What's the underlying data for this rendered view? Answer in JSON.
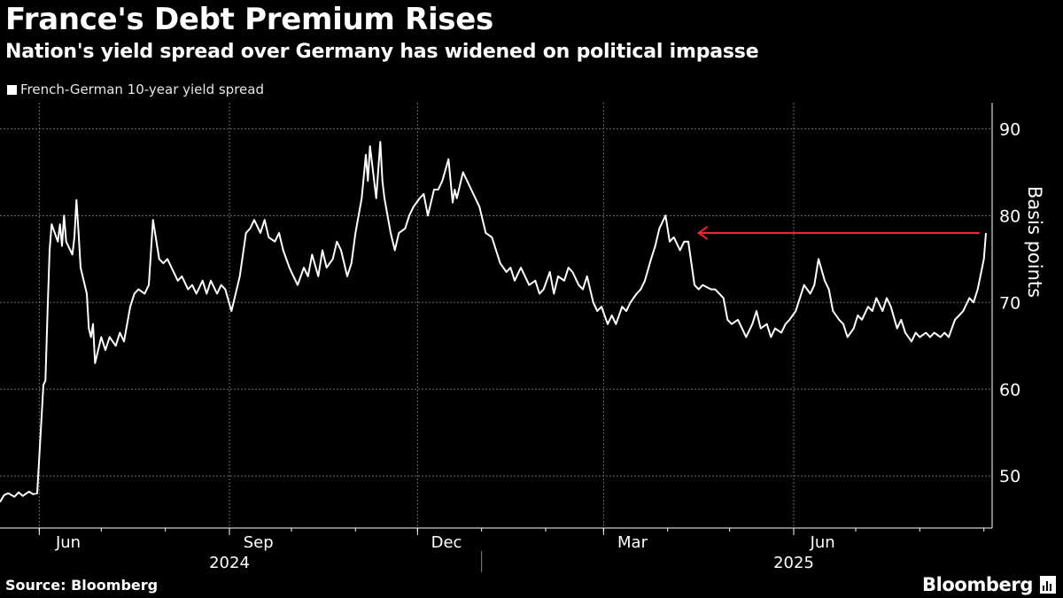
{
  "header": {
    "title": "France's Debt Premium Rises",
    "subtitle": "Nation's yield spread over Germany has widened on political impasse"
  },
  "footer": {
    "source": "Source: Bloomberg",
    "brand": "Bloomberg"
  },
  "colors": {
    "background": "#000000",
    "line": "#ffffff",
    "annotation_arrow": "#e8283c",
    "grid": "#6b6b6b"
  },
  "chart_data": {
    "type": "line",
    "title": "France's Debt Premium Rises",
    "subtitle": "Nation's yield spread over Germany has widened on political impasse",
    "ylabel": "Basis points",
    "ylim": [
      44,
      93
    ],
    "yticks": [
      50,
      60,
      70,
      80,
      90
    ],
    "xlim": [
      "2024-05-13",
      "2025-09-05"
    ],
    "xticks": [
      {
        "date": "2024-06-01",
        "label": "Jun"
      },
      {
        "date": "2024-09-01",
        "label": "Sep"
      },
      {
        "date": "2024-12-01",
        "label": "Dec"
      },
      {
        "date": "2025-03-01",
        "label": "Mar"
      },
      {
        "date": "2025-06-01",
        "label": "Jun"
      }
    ],
    "year_labels": [
      {
        "date": "2024-09-01",
        "label": "2024"
      },
      {
        "date": "2025-06-01",
        "label": "2025"
      }
    ],
    "year_divider": "2025-01-01",
    "grid": true,
    "legend": "top-left",
    "series": [
      {
        "name": "French-German 10-year yield spread",
        "points": [
          [
            "2024-05-13",
            47.0
          ],
          [
            "2024-05-15",
            47.8
          ],
          [
            "2024-05-17",
            48.0
          ],
          [
            "2024-05-20",
            47.6
          ],
          [
            "2024-05-22",
            48.1
          ],
          [
            "2024-05-24",
            47.7
          ],
          [
            "2024-05-27",
            48.2
          ],
          [
            "2024-05-29",
            47.9
          ],
          [
            "2024-05-31",
            48.0
          ],
          [
            "2024-06-03",
            60.5
          ],
          [
            "2024-06-04",
            61.0
          ],
          [
            "2024-06-05",
            69.0
          ],
          [
            "2024-06-06",
            76.0
          ],
          [
            "2024-06-07",
            79.0
          ],
          [
            "2024-06-10",
            77.0
          ],
          [
            "2024-06-11",
            79.0
          ],
          [
            "2024-06-12",
            76.5
          ],
          [
            "2024-06-13",
            80.0
          ],
          [
            "2024-06-14",
            77.0
          ],
          [
            "2024-06-17",
            75.5
          ],
          [
            "2024-06-18",
            77.5
          ],
          [
            "2024-06-19",
            81.8
          ],
          [
            "2024-06-20",
            78.0
          ],
          [
            "2024-06-21",
            74.0
          ],
          [
            "2024-06-24",
            71.0
          ],
          [
            "2024-06-25",
            67.0
          ],
          [
            "2024-06-26",
            66.0
          ],
          [
            "2024-06-27",
            67.5
          ],
          [
            "2024-06-28",
            63.0
          ],
          [
            "2024-07-01",
            66.0
          ],
          [
            "2024-07-03",
            64.5
          ],
          [
            "2024-07-05",
            66.0
          ],
          [
            "2024-07-08",
            65.0
          ],
          [
            "2024-07-10",
            66.5
          ],
          [
            "2024-07-12",
            65.5
          ],
          [
            "2024-07-15",
            69.5
          ],
          [
            "2024-07-17",
            71.0
          ],
          [
            "2024-07-19",
            71.5
          ],
          [
            "2024-07-22",
            71.0
          ],
          [
            "2024-07-24",
            72.0
          ],
          [
            "2024-07-26",
            79.5
          ],
          [
            "2024-07-29",
            75.0
          ],
          [
            "2024-07-31",
            74.5
          ],
          [
            "2024-08-02",
            75.0
          ],
          [
            "2024-08-05",
            73.5
          ],
          [
            "2024-08-07",
            72.5
          ],
          [
            "2024-08-09",
            73.0
          ],
          [
            "2024-08-12",
            71.5
          ],
          [
            "2024-08-14",
            72.0
          ],
          [
            "2024-08-16",
            71.0
          ],
          [
            "2024-08-19",
            72.5
          ],
          [
            "2024-08-21",
            71.0
          ],
          [
            "2024-08-23",
            72.5
          ],
          [
            "2024-08-26",
            71.0
          ],
          [
            "2024-08-28",
            72.0
          ],
          [
            "2024-08-30",
            71.5
          ],
          [
            "2024-09-02",
            69.0
          ],
          [
            "2024-09-04",
            71.0
          ],
          [
            "2024-09-06",
            73.0
          ],
          [
            "2024-09-09",
            78.0
          ],
          [
            "2024-09-11",
            78.5
          ],
          [
            "2024-09-13",
            79.5
          ],
          [
            "2024-09-16",
            78.0
          ],
          [
            "2024-09-18",
            79.5
          ],
          [
            "2024-09-20",
            77.5
          ],
          [
            "2024-09-23",
            77.0
          ],
          [
            "2024-09-25",
            78.0
          ],
          [
            "2024-09-27",
            76.0
          ],
          [
            "2024-09-30",
            74.0
          ],
          [
            "2024-10-02",
            73.0
          ],
          [
            "2024-10-04",
            72.0
          ],
          [
            "2024-10-07",
            74.0
          ],
          [
            "2024-10-09",
            73.0
          ],
          [
            "2024-10-11",
            75.5
          ],
          [
            "2024-10-14",
            73.0
          ],
          [
            "2024-10-16",
            76.0
          ],
          [
            "2024-10-18",
            74.0
          ],
          [
            "2024-10-21",
            75.0
          ],
          [
            "2024-10-23",
            77.0
          ],
          [
            "2024-10-25",
            76.0
          ],
          [
            "2024-10-28",
            73.0
          ],
          [
            "2024-10-30",
            74.5
          ],
          [
            "2024-11-01",
            78.0
          ],
          [
            "2024-11-04",
            82.0
          ],
          [
            "2024-11-06",
            87.0
          ],
          [
            "2024-11-07",
            84.0
          ],
          [
            "2024-11-08",
            88.0
          ],
          [
            "2024-11-11",
            82.0
          ],
          [
            "2024-11-13",
            88.5
          ],
          [
            "2024-11-14",
            84.0
          ],
          [
            "2024-11-15",
            82.0
          ],
          [
            "2024-11-18",
            78.0
          ],
          [
            "2024-11-20",
            76.0
          ],
          [
            "2024-11-22",
            78.0
          ],
          [
            "2024-11-25",
            78.5
          ],
          [
            "2024-11-27",
            80.0
          ],
          [
            "2024-11-29",
            81.0
          ],
          [
            "2024-12-02",
            82.0
          ],
          [
            "2024-12-04",
            82.5
          ],
          [
            "2024-12-06",
            80.0
          ],
          [
            "2024-12-09",
            83.0
          ],
          [
            "2024-12-11",
            83.0
          ],
          [
            "2024-12-13",
            84.0
          ],
          [
            "2024-12-16",
            86.5
          ],
          [
            "2024-12-18",
            81.5
          ],
          [
            "2024-12-19",
            83.0
          ],
          [
            "2024-12-20",
            82.0
          ],
          [
            "2024-12-23",
            85.0
          ],
          [
            "2024-12-27",
            83.0
          ],
          [
            "2024-12-31",
            81.0
          ],
          [
            "2025-01-02",
            79.0
          ],
          [
            "2025-01-03",
            78.0
          ],
          [
            "2025-01-06",
            77.5
          ],
          [
            "2025-01-08",
            76.0
          ],
          [
            "2025-01-10",
            74.5
          ],
          [
            "2025-01-13",
            73.5
          ],
          [
            "2025-01-15",
            74.0
          ],
          [
            "2025-01-17",
            72.5
          ],
          [
            "2025-01-20",
            74.0
          ],
          [
            "2025-01-22",
            73.0
          ],
          [
            "2025-01-24",
            72.0
          ],
          [
            "2025-01-27",
            72.5
          ],
          [
            "2025-01-29",
            71.0
          ],
          [
            "2025-01-31",
            71.5
          ],
          [
            "2025-02-03",
            73.5
          ],
          [
            "2025-02-05",
            71.0
          ],
          [
            "2025-02-07",
            73.0
          ],
          [
            "2025-02-10",
            72.5
          ],
          [
            "2025-02-12",
            74.0
          ],
          [
            "2025-02-14",
            73.5
          ],
          [
            "2025-02-17",
            72.0
          ],
          [
            "2025-02-19",
            71.5
          ],
          [
            "2025-02-21",
            73.0
          ],
          [
            "2025-02-24",
            70.0
          ],
          [
            "2025-02-26",
            69.0
          ],
          [
            "2025-02-28",
            69.5
          ],
          [
            "2025-03-03",
            67.5
          ],
          [
            "2025-03-05",
            68.5
          ],
          [
            "2025-03-07",
            67.5
          ],
          [
            "2025-03-10",
            69.5
          ],
          [
            "2025-03-12",
            69.0
          ],
          [
            "2025-03-14",
            70.0
          ],
          [
            "2025-03-17",
            71.0
          ],
          [
            "2025-03-19",
            71.5
          ],
          [
            "2025-03-21",
            72.5
          ],
          [
            "2025-03-24",
            75.0
          ],
          [
            "2025-03-26",
            76.5
          ],
          [
            "2025-03-28",
            78.5
          ],
          [
            "2025-03-31",
            80.0
          ],
          [
            "2025-04-02",
            77.0
          ],
          [
            "2025-04-04",
            77.5
          ],
          [
            "2025-04-07",
            76.0
          ],
          [
            "2025-04-09",
            77.0
          ],
          [
            "2025-04-11",
            77.0
          ],
          [
            "2025-04-14",
            72.0
          ],
          [
            "2025-04-16",
            71.5
          ],
          [
            "2025-04-18",
            72.0
          ],
          [
            "2025-04-22",
            71.5
          ],
          [
            "2025-04-24",
            71.5
          ],
          [
            "2025-04-28",
            70.5
          ],
          [
            "2025-04-30",
            68.0
          ],
          [
            "2025-05-02",
            67.5
          ],
          [
            "2025-05-05",
            68.0
          ],
          [
            "2025-05-07",
            67.0
          ],
          [
            "2025-05-09",
            66.0
          ],
          [
            "2025-05-12",
            67.5
          ],
          [
            "2025-05-14",
            69.0
          ],
          [
            "2025-05-16",
            67.0
          ],
          [
            "2025-05-19",
            67.5
          ],
          [
            "2025-05-21",
            66.0
          ],
          [
            "2025-05-23",
            67.0
          ],
          [
            "2025-05-26",
            66.5
          ],
          [
            "2025-05-28",
            67.5
          ],
          [
            "2025-05-30",
            68.0
          ],
          [
            "2025-06-02",
            69.0
          ],
          [
            "2025-06-04",
            70.5
          ],
          [
            "2025-06-06",
            72.0
          ],
          [
            "2025-06-09",
            71.0
          ],
          [
            "2025-06-11",
            72.0
          ],
          [
            "2025-06-13",
            75.0
          ],
          [
            "2025-06-16",
            72.5
          ],
          [
            "2025-06-18",
            71.5
          ],
          [
            "2025-06-20",
            69.0
          ],
          [
            "2025-06-23",
            68.0
          ],
          [
            "2025-06-25",
            67.5
          ],
          [
            "2025-06-27",
            66.0
          ],
          [
            "2025-06-30",
            67.0
          ],
          [
            "2025-07-02",
            68.5
          ],
          [
            "2025-07-04",
            68.0
          ],
          [
            "2025-07-07",
            69.5
          ],
          [
            "2025-07-09",
            69.0
          ],
          [
            "2025-07-11",
            70.5
          ],
          [
            "2025-07-14",
            69.0
          ],
          [
            "2025-07-16",
            70.5
          ],
          [
            "2025-07-18",
            69.5
          ],
          [
            "2025-07-21",
            67.0
          ],
          [
            "2025-07-23",
            68.0
          ],
          [
            "2025-07-25",
            66.5
          ],
          [
            "2025-07-28",
            65.5
          ],
          [
            "2025-07-30",
            66.5
          ],
          [
            "2025-08-01",
            66.0
          ],
          [
            "2025-08-04",
            66.5
          ],
          [
            "2025-08-06",
            66.0
          ],
          [
            "2025-08-08",
            66.5
          ],
          [
            "2025-08-11",
            66.0
          ],
          [
            "2025-08-13",
            66.5
          ],
          [
            "2025-08-15",
            66.0
          ],
          [
            "2025-08-18",
            68.0
          ],
          [
            "2025-08-20",
            68.5
          ],
          [
            "2025-08-22",
            69.0
          ],
          [
            "2025-08-25",
            70.5
          ],
          [
            "2025-08-27",
            70.0
          ],
          [
            "2025-08-29",
            71.5
          ],
          [
            "2025-09-01",
            75.0
          ],
          [
            "2025-09-02",
            78.0
          ]
        ]
      }
    ],
    "annotations": [
      {
        "type": "arrow",
        "from": {
          "date": "2025-08-30",
          "value": 78.0
        },
        "to": {
          "date": "2025-04-16",
          "value": 78.0
        }
      }
    ]
  }
}
